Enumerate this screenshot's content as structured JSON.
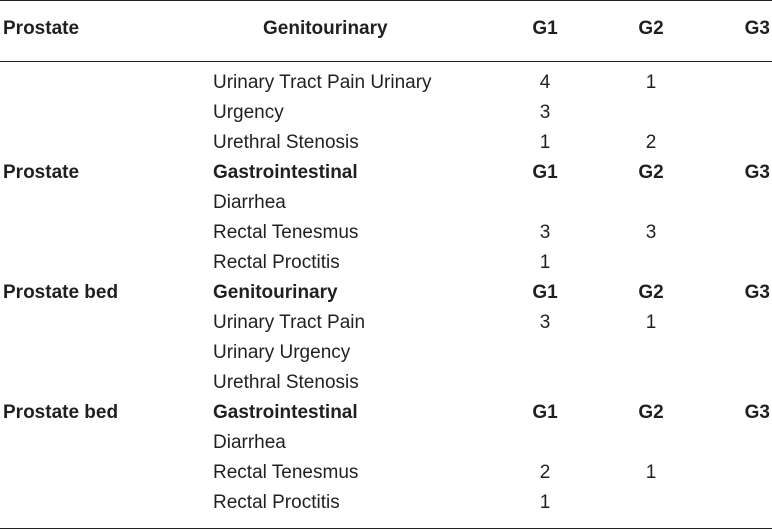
{
  "table": {
    "columns": [
      "Prostate",
      "Genitourinary",
      "G1",
      "G2",
      "G3"
    ],
    "rows": [
      {
        "site": "",
        "tox": "Urinary Tract Pain Urinary",
        "g1": "4",
        "g2": "1",
        "g3": "",
        "section": false
      },
      {
        "site": "",
        "tox": "Urgency",
        "g1": "3",
        "g2": "",
        "g3": "",
        "section": false
      },
      {
        "site": "",
        "tox": "Urethral Stenosis",
        "g1": "1",
        "g2": "2",
        "g3": "",
        "section": false
      },
      {
        "site": "Prostate",
        "tox": "Gastrointestinal",
        "g1": "G1",
        "g2": "G2",
        "g3": "G3",
        "section": true
      },
      {
        "site": "",
        "tox": "Diarrhea",
        "g1": "",
        "g2": "",
        "g3": "",
        "section": false
      },
      {
        "site": "",
        "tox": "Rectal Tenesmus",
        "g1": "3",
        "g2": "3",
        "g3": "",
        "section": false
      },
      {
        "site": "",
        "tox": "Rectal Proctitis",
        "g1": "1",
        "g2": "",
        "g3": "",
        "section": false
      },
      {
        "site": "Prostate bed",
        "tox": "Genitourinary",
        "g1": "G1",
        "g2": "G2",
        "g3": "G3",
        "section": true
      },
      {
        "site": "",
        "tox": "Urinary Tract Pain",
        "g1": "3",
        "g2": "1",
        "g3": "",
        "section": false
      },
      {
        "site": "",
        "tox": "Urinary Urgency",
        "g1": "",
        "g2": "",
        "g3": "",
        "section": false
      },
      {
        "site": "",
        "tox": "Urethral Stenosis",
        "g1": "",
        "g2": "",
        "g3": "",
        "section": false
      },
      {
        "site": "Prostate bed",
        "tox": "Gastrointestinal",
        "g1": "G1",
        "g2": "G2",
        "g3": "G3",
        "section": true
      },
      {
        "site": "",
        "tox": "Diarrhea",
        "g1": "",
        "g2": "",
        "g3": "",
        "section": false
      },
      {
        "site": "",
        "tox": "Rectal Tenesmus",
        "g1": "2",
        "g2": "1",
        "g3": "",
        "section": false
      },
      {
        "site": "",
        "tox": "Rectal Proctitis",
        "g1": "1",
        "g2": "",
        "g3": "",
        "section": false
      }
    ]
  }
}
